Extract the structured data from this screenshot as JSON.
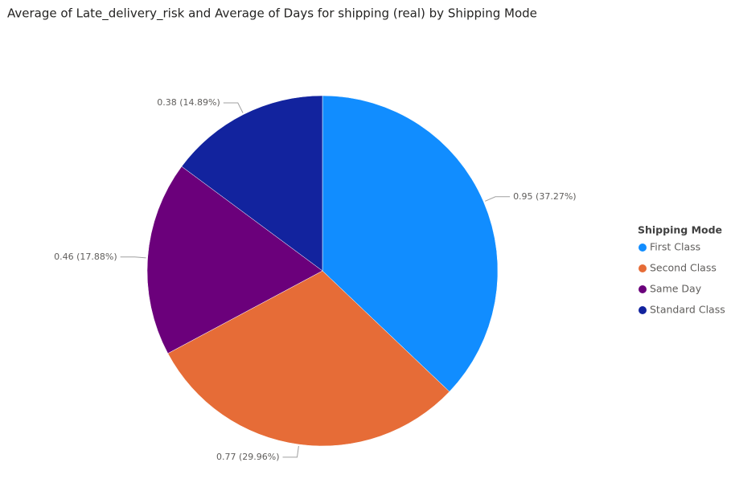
{
  "chart_data": {
    "type": "pie",
    "title": "Average of Late_delivery_risk and Average of Days for shipping (real) by Shipping Mode",
    "legend_title": "Shipping Mode",
    "legend_position": "right",
    "categories": [
      "First Class",
      "Second Class",
      "Same Day",
      "Standard Class"
    ],
    "values": [
      0.95,
      0.77,
      0.46,
      0.38
    ],
    "value_labels": [
      "0.95 (37.27%)",
      "0.77 (29.96%)",
      "0.46 (17.88%)",
      "0.38 (14.89%)"
    ],
    "colors": [
      "#118DFF",
      "#E66C37",
      "#6B007B",
      "#12239E"
    ]
  }
}
